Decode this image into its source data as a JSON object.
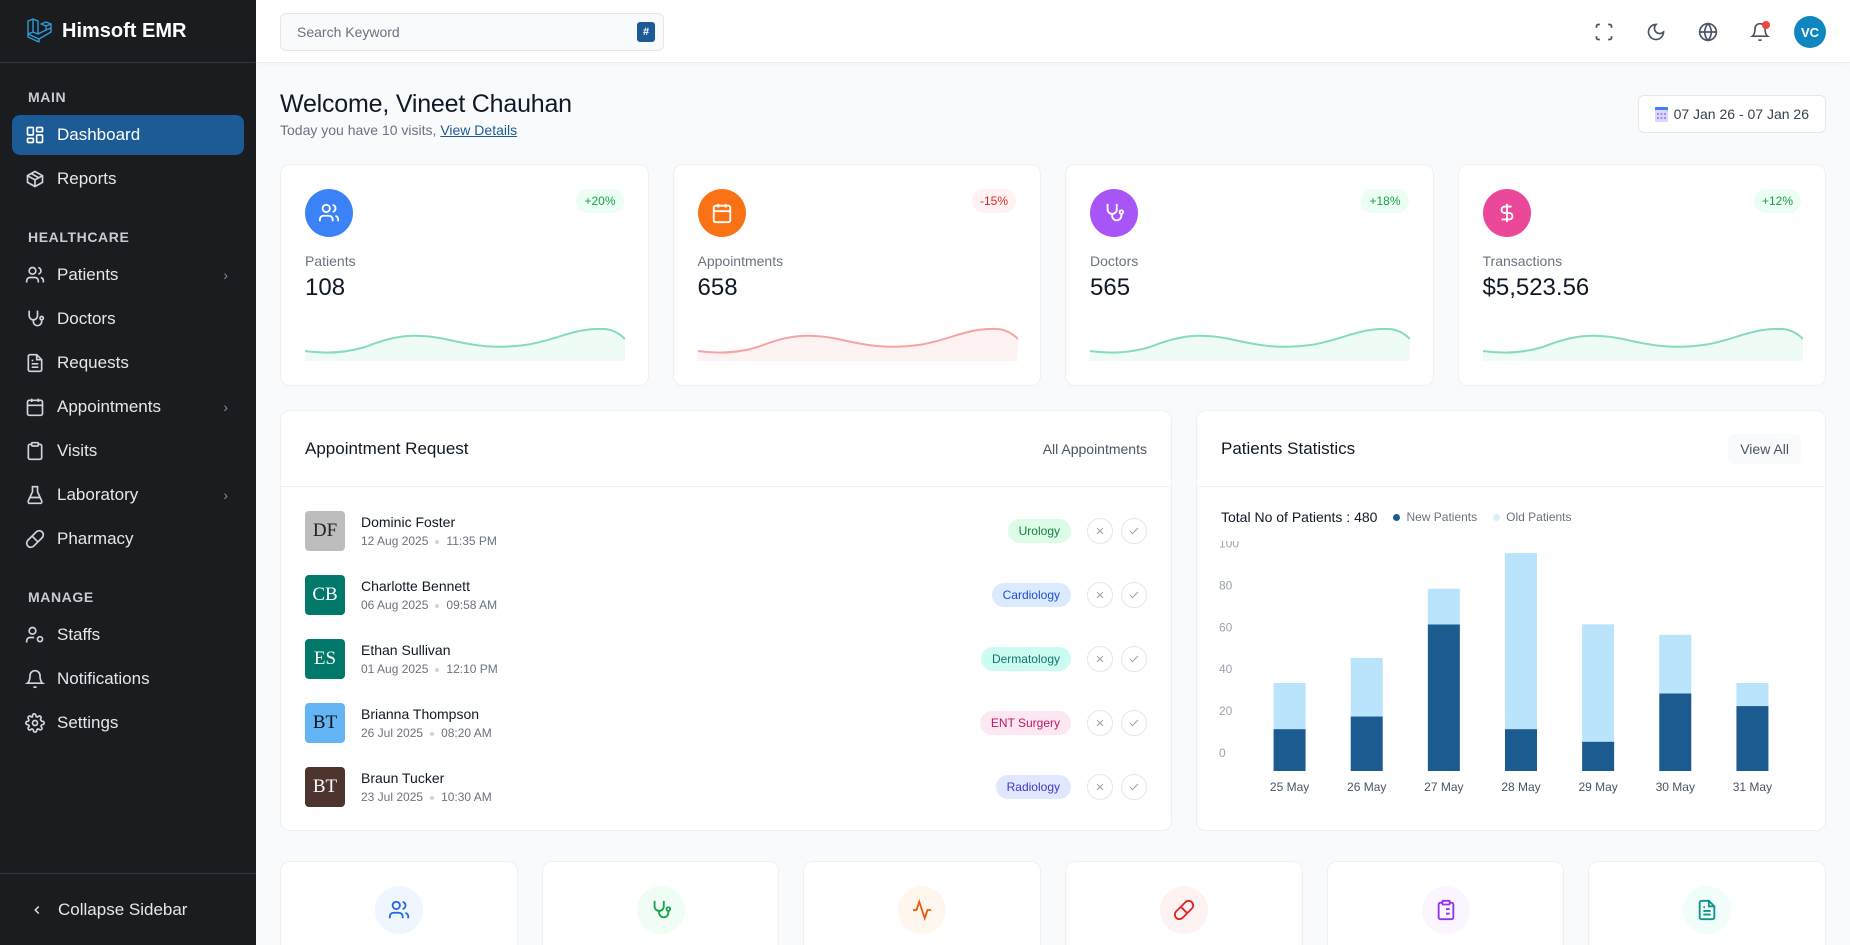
{
  "brand": {
    "name": "Himsoft EMR",
    "accent": "#1c5b95"
  },
  "sidebar": {
    "sections": [
      {
        "title": "MAIN",
        "items": [
          {
            "label": "Dashboard",
            "icon": "dashboard-icon",
            "active": true
          },
          {
            "label": "Reports",
            "icon": "box-icon"
          }
        ]
      },
      {
        "title": "HEALTHCARE",
        "items": [
          {
            "label": "Patients",
            "icon": "users-icon",
            "has_submenu": true
          },
          {
            "label": "Doctors",
            "icon": "stethoscope-icon"
          },
          {
            "label": "Requests",
            "icon": "file-text-icon"
          },
          {
            "label": "Appointments",
            "icon": "calendar-icon",
            "has_submenu": true
          },
          {
            "label": "Visits",
            "icon": "clipboard-icon"
          },
          {
            "label": "Laboratory",
            "icon": "flask-icon",
            "has_submenu": true
          },
          {
            "label": "Pharmacy",
            "icon": "pill-icon"
          }
        ]
      },
      {
        "title": "MANAGE",
        "items": [
          {
            "label": "Staffs",
            "icon": "user-cog-icon"
          },
          {
            "label": "Notifications",
            "icon": "bell-icon"
          },
          {
            "label": "Settings",
            "icon": "gear-icon"
          }
        ]
      }
    ],
    "collapse_label": "Collapse Sidebar"
  },
  "header": {
    "search_placeholder": "Search Keyword",
    "search_shortcut": "#",
    "user_initials": "VC"
  },
  "welcome": {
    "title": "Welcome, Vineet Chauhan",
    "subtitle": "Today you have 10 visits,",
    "link": "View Details",
    "date_range": "07 Jan 26 - 07 Jan 26"
  },
  "stats": [
    {
      "label": "Patients",
      "value": "108",
      "change": "+20%",
      "trend": "up",
      "icon_color": "#3b82f6",
      "line_color": "#86dcb8",
      "fill_color": "#effcf5"
    },
    {
      "label": "Appointments",
      "value": "658",
      "change": "-15%",
      "trend": "down",
      "icon_color": "#f97316",
      "line_color": "#f6a3a3",
      "fill_color": "#fef3f3"
    },
    {
      "label": "Doctors",
      "value": "565",
      "change": "+18%",
      "trend": "up",
      "icon_color": "#a855f7",
      "line_color": "#86dcb8",
      "fill_color": "#effcf5"
    },
    {
      "label": "Transactions",
      "value": "$5,523.56",
      "change": "+12%",
      "trend": "up",
      "icon_color": "#ec4899",
      "line_color": "#86dcb8",
      "fill_color": "#effcf5"
    }
  ],
  "appointments": {
    "title": "Appointment Request",
    "link": "All Appointments",
    "rows": [
      {
        "initials": "DF",
        "name": "Dominic Foster",
        "date": "12 Aug 2025",
        "time": "11:35 PM",
        "dept": "Urology",
        "avatar_color": "#bdbdbd",
        "avatar_text": "#222222",
        "dept_bg": "#dcfce7",
        "dept_fg": "#15803d"
      },
      {
        "initials": "CB",
        "name": "Charlotte Bennett",
        "date": "06 Aug 2025",
        "time": "09:58 AM",
        "dept": "Cardiology",
        "avatar_color": "#00796b",
        "avatar_text": "#ffffff",
        "dept_bg": "#dbeafe",
        "dept_fg": "#1d4ed8"
      },
      {
        "initials": "ES",
        "name": "Ethan Sullivan",
        "date": "01 Aug 2025",
        "time": "12:10 PM",
        "dept": "Dermatology",
        "avatar_color": "#00796b",
        "avatar_text": "#ffffff",
        "dept_bg": "#ccfbf1",
        "dept_fg": "#0f766e"
      },
      {
        "initials": "BT",
        "name": "Brianna Thompson",
        "date": "26 Jul 2025",
        "time": "08:20 AM",
        "dept": "ENT Surgery",
        "avatar_color": "#64b5f6",
        "avatar_text": "#111111",
        "dept_bg": "#fce7f3",
        "dept_fg": "#be185d"
      },
      {
        "initials": "BT",
        "name": "Braun Tucker",
        "date": "23 Jul 2025",
        "time": "10:30 AM",
        "dept": "Radiology",
        "avatar_color": "#4e342e",
        "avatar_text": "#ffffff",
        "dept_bg": "#e0e7ff",
        "dept_fg": "#4338ca"
      }
    ]
  },
  "patients_stats": {
    "title": "Patients Statistics",
    "button": "View All",
    "total_label": "Total No of Patients : 480"
  },
  "chart_data": {
    "type": "bar",
    "stacked": true,
    "title": "Patients Statistics",
    "categories": [
      "25 May",
      "26 May",
      "27 May",
      "28 May",
      "29 May",
      "30 May",
      "31 May"
    ],
    "series": [
      {
        "name": "New Patients",
        "color": "#1c5b8f",
        "values": [
          20,
          26,
          70,
          20,
          14,
          37,
          31
        ]
      },
      {
        "name": "Old Patients",
        "color": "#b9e4fb",
        "values": [
          22,
          28,
          17,
          84,
          56,
          28,
          11
        ]
      }
    ],
    "yticks": [
      0,
      20,
      40,
      60,
      80,
      100
    ],
    "ylim": [
      0,
      105
    ],
    "legend": "top-left",
    "grid": false,
    "xlabel": "",
    "ylabel": ""
  },
  "quick_links": [
    {
      "icon": "users-icon",
      "color": "#2563eb",
      "bg": "#eff6ff"
    },
    {
      "icon": "stethoscope-icon",
      "color": "#16a34a",
      "bg": "#f0fdf4"
    },
    {
      "icon": "activity-icon",
      "color": "#ea580c",
      "bg": "#fff7ed"
    },
    {
      "icon": "pill-icon",
      "color": "#dc2626",
      "bg": "#fef2f2"
    },
    {
      "icon": "clipboard-list-icon",
      "color": "#9333ea",
      "bg": "#faf5ff"
    },
    {
      "icon": "file-text-icon",
      "color": "#0d9488",
      "bg": "#f0fdfa"
    }
  ]
}
